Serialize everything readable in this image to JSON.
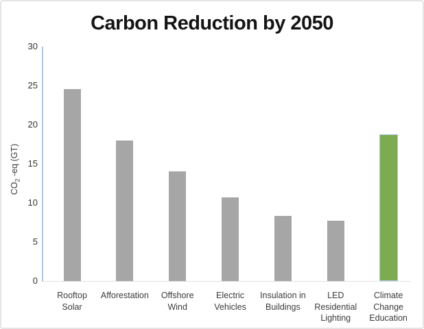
{
  "chart_data": {
    "type": "bar",
    "title": "Carbon Reduction by 2050",
    "xlabel": "",
    "ylabel": "CO2 -eq (GT)",
    "ylabel_parts": {
      "base": "CO",
      "sub": "2",
      "rest": " -eq (GT)"
    },
    "categories": [
      "Rooftop Solar",
      "Afforestation",
      "Offshore Wind",
      "Electric Vehicles",
      "Insulation in Buildings",
      "LED Residential Lighting",
      "Climate Change Education"
    ],
    "category_lines": [
      [
        "Rooftop",
        "Solar"
      ],
      [
        "Afforestation"
      ],
      [
        "Offshore",
        "Wind"
      ],
      [
        "Electric",
        "Vehicles"
      ],
      [
        "Insulation in",
        "Buildings"
      ],
      [
        "LED",
        "Residential",
        "Lighting"
      ],
      [
        "Climate",
        "Change",
        "Education"
      ]
    ],
    "values": [
      24.6,
      18.0,
      14.0,
      10.7,
      8.3,
      7.7,
      18.8
    ],
    "highlight_index": 6,
    "ylim": [
      0,
      30
    ],
    "yticks": [
      0,
      5,
      10,
      15,
      20,
      25,
      30
    ],
    "ytick_step": 5,
    "grid": false,
    "legend_position": "none",
    "colors": {
      "bar": "#a6a6a6",
      "highlight": "#7cab52",
      "highlight_border": "#a9c4e1",
      "axis": "#aec7e0",
      "baseline": "#e0e0e0"
    }
  }
}
